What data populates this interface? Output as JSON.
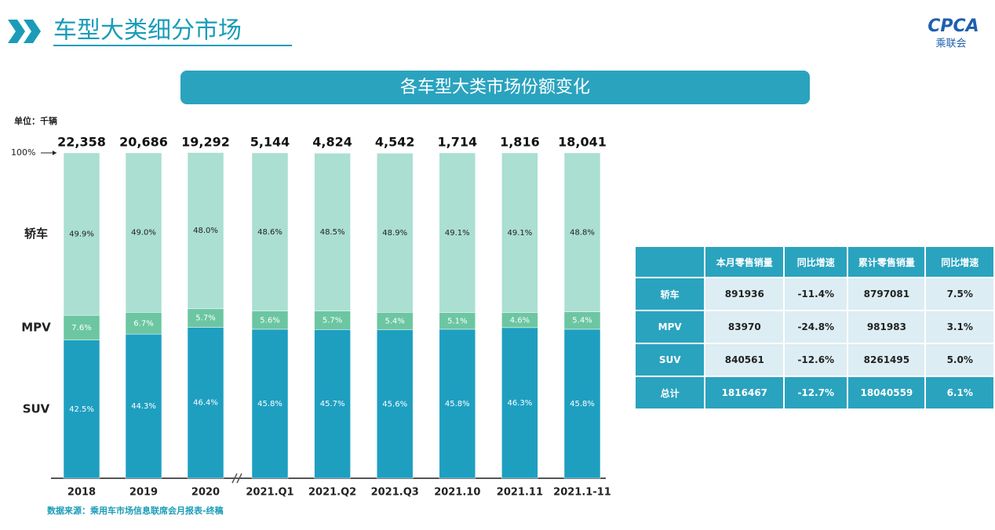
{
  "header": {
    "title": "车型大类细分市场",
    "logo": "CPCA",
    "logo_sub": "乘联会"
  },
  "chart_data": {
    "type": "stacked_bar",
    "title": "各车型大类市场份额变化",
    "unit": "单位：千辆",
    "categories": [
      "2018",
      "2019",
      "2020",
      "2021.Q1",
      "2021.Q2",
      "2021.Q3",
      "2021.10",
      "2021.11",
      "2021.1-11"
    ],
    "totals": {
      "values": [
        22358,
        20686,
        19292,
        5144,
        4824,
        4542,
        1714,
        1816,
        18041
      ],
      "value_labels": [
        "22,358",
        "20,686",
        "19,292",
        "5,144",
        "4,824",
        "4,542",
        "1,714",
        "1,816",
        "18,041"
      ]
    },
    "series": [
      {
        "name": "SUV",
        "color": "#1e9fc0",
        "values": [
          42.5,
          44.3,
          46.4,
          45.8,
          45.7,
          45.6,
          45.8,
          46.3,
          45.8
        ],
        "value_labels": [
          "42.5%",
          "44.3%",
          "46.4%",
          "45.8%",
          "45.7%",
          "45.6%",
          "45.8%",
          "46.3%",
          "45.8%"
        ]
      },
      {
        "name": "MPV",
        "color": "#6cc6a2",
        "values": [
          7.6,
          6.7,
          5.7,
          5.6,
          5.7,
          5.4,
          5.1,
          4.6,
          5.4
        ],
        "value_labels": [
          "7.6%",
          "6.7%",
          "5.7%",
          "5.6%",
          "5.7%",
          "5.4%",
          "5.1%",
          "4.6%",
          "5.4%"
        ]
      },
      {
        "name": "轿车",
        "color": "#aadfd2",
        "values": [
          49.9,
          49.0,
          48.0,
          48.6,
          48.5,
          48.9,
          49.1,
          49.1,
          48.8
        ],
        "value_labels": [
          "49.9%",
          "49.0%",
          "48.0%",
          "48.6%",
          "48.5%",
          "48.9%",
          "49.1%",
          "49.1%",
          "48.8%"
        ]
      }
    ],
    "ylim": [
      0,
      100
    ],
    "yticks": [
      {
        "value": 100,
        "label": "100%"
      }
    ]
  },
  "table": {
    "columns": [
      "本月零售销量",
      "同比增速",
      "累计零售销量",
      "同比增速"
    ],
    "rows": [
      [
        "轿车",
        "891936",
        "-11.4%",
        "8797081",
        "7.5%"
      ],
      [
        "MPV",
        "83970",
        "-24.8%",
        "981983",
        "3.1%"
      ],
      [
        "SUV",
        "840561",
        "-12.6%",
        "8261495",
        "5.0%"
      ],
      [
        "总计",
        "1816467",
        "-12.7%",
        "18040559",
        "6.1%"
      ]
    ]
  },
  "source": "数据来源：乘用车市场信息联席会月报表-终稿"
}
